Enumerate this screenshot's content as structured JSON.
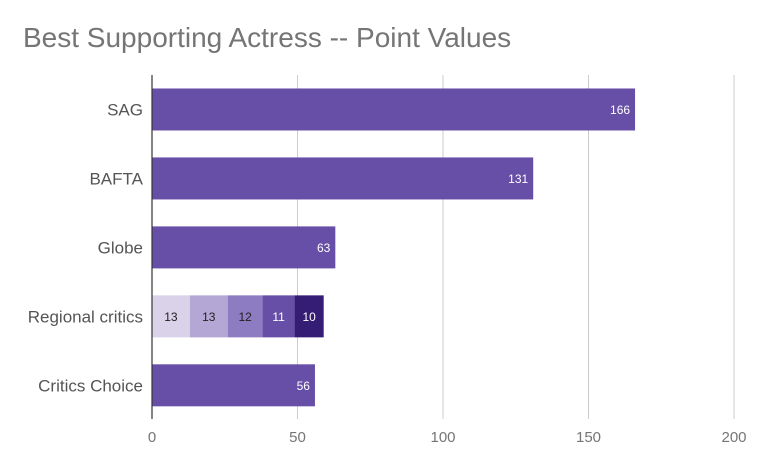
{
  "chart_data": {
    "type": "bar",
    "orientation": "horizontal",
    "stacked": true,
    "title": "Best Supporting Actress -- Point Values",
    "xlabel": "",
    "ylabel": "",
    "xlim": [
      0,
      200
    ],
    "xticks": [
      0,
      50,
      100,
      150,
      200
    ],
    "grid": true,
    "legend": "none",
    "categories": [
      "SAG",
      "BAFTA",
      "Globe",
      "Regional critics",
      "Critics Choice"
    ],
    "bars": [
      {
        "category": "SAG",
        "segments": [
          {
            "value": 166,
            "color": "#674ea7",
            "label_color": "#ffffff"
          }
        ]
      },
      {
        "category": "BAFTA",
        "segments": [
          {
            "value": 131,
            "color": "#674ea7",
            "label_color": "#ffffff"
          }
        ]
      },
      {
        "category": "Globe",
        "segments": [
          {
            "value": 63,
            "color": "#674ea7",
            "label_color": "#ffffff"
          }
        ]
      },
      {
        "category": "Regional critics",
        "segments": [
          {
            "value": 13,
            "color": "#d9d2e9",
            "label_color": "#212121"
          },
          {
            "value": 13,
            "color": "#b4a7d6",
            "label_color": "#212121"
          },
          {
            "value": 12,
            "color": "#8e7cc3",
            "label_color": "#212121"
          },
          {
            "value": 11,
            "color": "#674ea7",
            "label_color": "#ffffff"
          },
          {
            "value": 10,
            "color": "#351c75",
            "label_color": "#ffffff"
          }
        ]
      },
      {
        "category": "Critics Choice",
        "segments": [
          {
            "value": 56,
            "color": "#674ea7",
            "label_color": "#ffffff"
          }
        ]
      }
    ]
  },
  "colors": {
    "title": "#757575",
    "category_label": "#555555",
    "tick_label": "#757575",
    "gridline": "#cccccc",
    "axis": "#333333"
  }
}
